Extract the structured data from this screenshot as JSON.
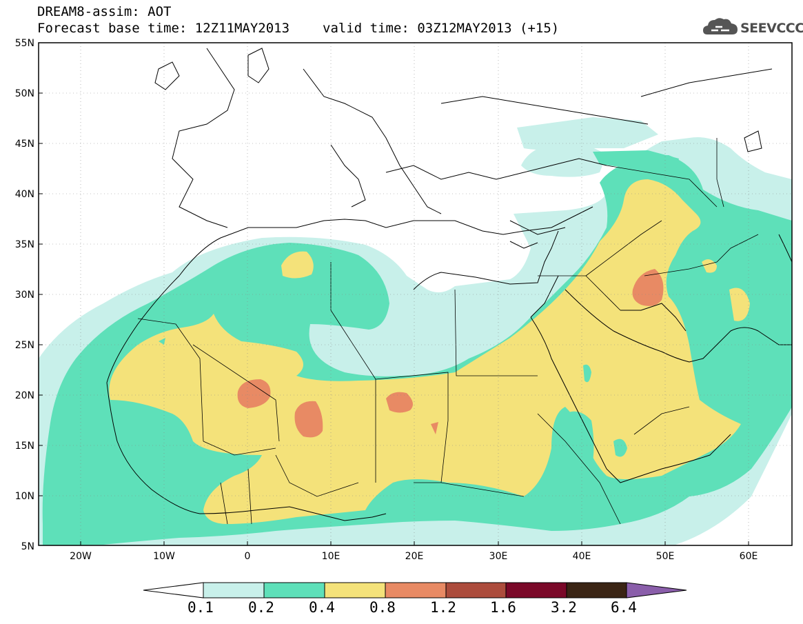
{
  "header": {
    "line1": "DREAM8-assim: AOT",
    "base_time": "Forecast base time: 12Z11MAY2013",
    "valid_time": "valid time: 03Z12MAY2013 (+15)"
  },
  "logo": {
    "text": "SEEVCCC",
    "icon": "cloud-icon"
  },
  "map": {
    "lat_labels": [
      "55N",
      "50N",
      "45N",
      "40N",
      "35N",
      "30N",
      "25N",
      "20N",
      "15N",
      "10N",
      "5N"
    ],
    "lon_labels": [
      "20W",
      "10W",
      "0",
      "10E",
      "20E",
      "30E",
      "40E",
      "50E",
      "60E"
    ],
    "lat_range": [
      5,
      55
    ],
    "lon_range": [
      -25,
      65
    ]
  },
  "legend": {
    "levels": [
      "0.1",
      "0.2",
      "0.4",
      "0.8",
      "1.2",
      "1.6",
      "3.2",
      "6.4"
    ],
    "colors": [
      "#c8f0ea",
      "#5ee0b9",
      "#f4e27a",
      "#e88a64",
      "#ac4c3c",
      "#7a0828",
      "#3a2414",
      "#8a5eaa"
    ],
    "under_color": "#ffffff"
  }
}
